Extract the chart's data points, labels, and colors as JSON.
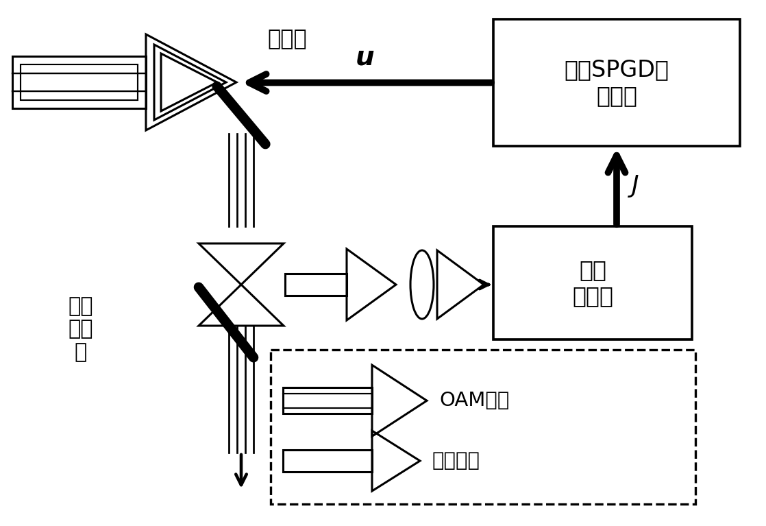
{
  "bg": "#ffffff",
  "lc": "#000000",
  "lw": 2.2,
  "tlw": 7.0,
  "figsize": [
    11.18,
    7.67
  ],
  "dpi": 100,
  "texts": {
    "bianxing": "变形镜",
    "u_label": "u",
    "spgd": "改进SPGD算\n法模块",
    "j_label": "J",
    "hongwai": "红外\n照相机",
    "piezhen": "偏振\n分束\n镜",
    "oam": "OAM光束",
    "gaosi": "高斯光束"
  }
}
